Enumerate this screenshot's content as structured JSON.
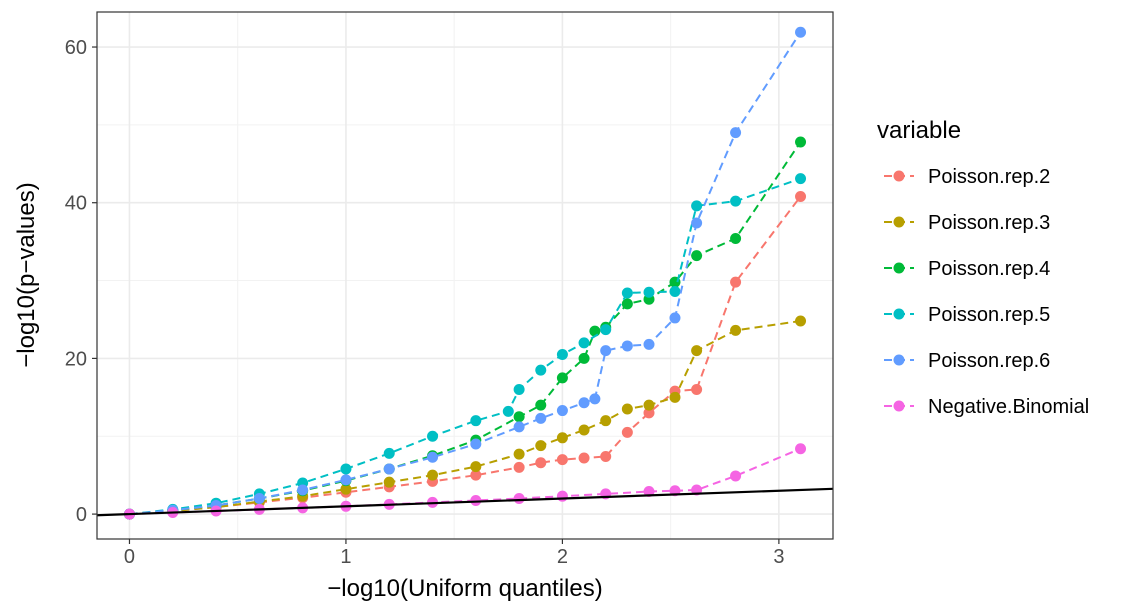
{
  "chart_data": {
    "type": "scatter",
    "xlabel": "−log10(Uniform quantiles)",
    "ylabel": "−log10(p−values)",
    "xlim": [
      -0.15,
      3.25
    ],
    "ylim": [
      -3.2,
      64.5
    ],
    "x_ticks": [
      0,
      1,
      2,
      3
    ],
    "y_ticks": [
      0,
      20,
      40,
      60
    ],
    "x_tick_labels": [
      "0",
      "1",
      "2",
      "3"
    ],
    "y_tick_labels": [
      "0",
      "20",
      "40",
      "60"
    ],
    "grid": true,
    "legend_position": "right",
    "legend_title": "variable",
    "reference_line": {
      "slope": 1,
      "intercept": 0,
      "color": "#000000"
    },
    "series": [
      {
        "name": "Poisson.rep.2",
        "color": "#F8766D",
        "points": [
          [
            0,
            0
          ],
          [
            0.2,
            0.4
          ],
          [
            0.4,
            0.9
          ],
          [
            0.6,
            1.5
          ],
          [
            0.8,
            2.1
          ],
          [
            1.0,
            2.8
          ],
          [
            1.2,
            3.5
          ],
          [
            1.4,
            4.2
          ],
          [
            1.6,
            5.0
          ],
          [
            1.8,
            6.0
          ],
          [
            1.9,
            6.6
          ],
          [
            2.0,
            7.0
          ],
          [
            2.1,
            7.2
          ],
          [
            2.2,
            7.4
          ],
          [
            2.3,
            10.5
          ],
          [
            2.4,
            13.0
          ],
          [
            2.52,
            15.8
          ],
          [
            2.62,
            16.0
          ],
          [
            2.8,
            29.8
          ],
          [
            3.1,
            40.8
          ]
        ]
      },
      {
        "name": "Poisson.rep.3",
        "color": "#B79F00",
        "points": [
          [
            0,
            0
          ],
          [
            0.2,
            0.4
          ],
          [
            0.4,
            0.9
          ],
          [
            0.6,
            1.6
          ],
          [
            0.8,
            2.3
          ],
          [
            1.0,
            3.2
          ],
          [
            1.2,
            4.1
          ],
          [
            1.4,
            5.0
          ],
          [
            1.6,
            6.1
          ],
          [
            1.8,
            7.7
          ],
          [
            1.9,
            8.8
          ],
          [
            2.0,
            9.8
          ],
          [
            2.1,
            10.8
          ],
          [
            2.2,
            12.0
          ],
          [
            2.3,
            13.5
          ],
          [
            2.4,
            14.0
          ],
          [
            2.52,
            15.0
          ],
          [
            2.62,
            21.0
          ],
          [
            2.8,
            23.6
          ],
          [
            3.1,
            24.8
          ]
        ]
      },
      {
        "name": "Poisson.rep.4",
        "color": "#00BA38",
        "points": [
          [
            0,
            0
          ],
          [
            0.2,
            0.5
          ],
          [
            0.4,
            1.1
          ],
          [
            0.6,
            2.0
          ],
          [
            0.8,
            3.0
          ],
          [
            1.0,
            4.3
          ],
          [
            1.2,
            5.8
          ],
          [
            1.4,
            7.5
          ],
          [
            1.6,
            9.5
          ],
          [
            1.8,
            12.5
          ],
          [
            1.9,
            14.0
          ],
          [
            2.0,
            17.5
          ],
          [
            2.1,
            20.0
          ],
          [
            2.15,
            23.5
          ],
          [
            2.2,
            24.0
          ],
          [
            2.3,
            27.0
          ],
          [
            2.4,
            27.6
          ],
          [
            2.52,
            29.8
          ],
          [
            2.62,
            33.2
          ],
          [
            2.8,
            35.4
          ],
          [
            3.1,
            47.8
          ]
        ]
      },
      {
        "name": "Poisson.rep.5",
        "color": "#00BFC4",
        "points": [
          [
            0,
            0
          ],
          [
            0.2,
            0.6
          ],
          [
            0.4,
            1.4
          ],
          [
            0.6,
            2.6
          ],
          [
            0.8,
            4.0
          ],
          [
            1.0,
            5.8
          ],
          [
            1.2,
            7.8
          ],
          [
            1.4,
            10.0
          ],
          [
            1.6,
            12.0
          ],
          [
            1.75,
            13.2
          ],
          [
            1.8,
            16.0
          ],
          [
            1.9,
            18.5
          ],
          [
            2.0,
            20.5
          ],
          [
            2.1,
            22.0
          ],
          [
            2.2,
            23.7
          ],
          [
            2.3,
            28.4
          ],
          [
            2.4,
            28.5
          ],
          [
            2.52,
            28.6
          ],
          [
            2.62,
            39.6
          ],
          [
            2.8,
            40.2
          ],
          [
            3.1,
            43.1
          ]
        ]
      },
      {
        "name": "Poisson.rep.6",
        "color": "#619CFF",
        "points": [
          [
            0,
            0
          ],
          [
            0.2,
            0.5
          ],
          [
            0.4,
            1.1
          ],
          [
            0.6,
            2.0
          ],
          [
            0.8,
            3.1
          ],
          [
            1.0,
            4.4
          ],
          [
            1.2,
            5.8
          ],
          [
            1.4,
            7.3
          ],
          [
            1.6,
            9.0
          ],
          [
            1.8,
            11.2
          ],
          [
            1.9,
            12.3
          ],
          [
            2.0,
            13.3
          ],
          [
            2.1,
            14.3
          ],
          [
            2.15,
            14.8
          ],
          [
            2.2,
            21.0
          ],
          [
            2.3,
            21.6
          ],
          [
            2.4,
            21.8
          ],
          [
            2.52,
            25.2
          ],
          [
            2.62,
            37.4
          ],
          [
            2.8,
            49.0
          ],
          [
            3.1,
            61.9
          ]
        ]
      },
      {
        "name": "Negative.Binomial",
        "color": "#F564E3",
        "points": [
          [
            0,
            0
          ],
          [
            0.2,
            0.2
          ],
          [
            0.4,
            0.4
          ],
          [
            0.6,
            0.6
          ],
          [
            0.8,
            0.8
          ],
          [
            1.0,
            1.0
          ],
          [
            1.2,
            1.25
          ],
          [
            1.4,
            1.5
          ],
          [
            1.6,
            1.75
          ],
          [
            1.8,
            2.0
          ],
          [
            2.0,
            2.3
          ],
          [
            2.2,
            2.6
          ],
          [
            2.4,
            2.9
          ],
          [
            2.52,
            3.0
          ],
          [
            2.62,
            3.1
          ],
          [
            2.8,
            4.9
          ],
          [
            3.1,
            8.4
          ]
        ]
      }
    ]
  }
}
